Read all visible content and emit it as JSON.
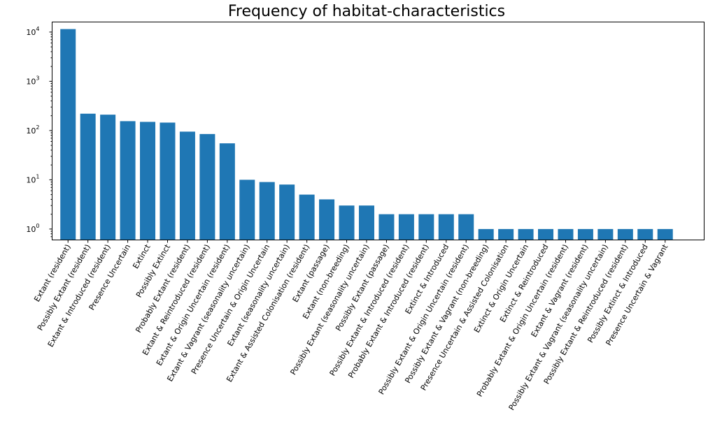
{
  "chart_data": {
    "type": "bar",
    "title": "Frequency of habitat-characteristics",
    "xlabel": "",
    "ylabel": "",
    "yscale": "log",
    "ylim": [
      0.6,
      16000
    ],
    "bar_color": "#1f77b4",
    "yticks": [
      {
        "value": 1,
        "base": "10",
        "exp": "0"
      },
      {
        "value": 10,
        "base": "10",
        "exp": "1"
      },
      {
        "value": 100,
        "base": "10",
        "exp": "2"
      },
      {
        "value": 1000,
        "base": "10",
        "exp": "3"
      },
      {
        "value": 10000,
        "base": "10",
        "exp": "4"
      }
    ],
    "categories": [
      "Extant (resident)",
      "Possibly Extant (resident)",
      "Extant & Introduced (resident)",
      "Presence Uncertain",
      "Extinct",
      "Possibly Extinct",
      "Probably Extant (resident)",
      "Extant & Reintroduced (resident)",
      "Extant & Origin Uncertain (resident)",
      "Extant & Vagrant (seasonality uncertain)",
      "Presence Uncertain & Origin Uncertain",
      "Extant (seasonality uncertain)",
      "Extant & Assisted Colonisation (resident)",
      "Extant (passage)",
      "Extant (non-breeding)",
      "Possibly Extant (seasonality uncertain)",
      "Possibly Extant (passage)",
      "Possibly Extant & Introduced (resident)",
      "Probably Extant & Introduced (resident)",
      "Extinct & Introduced",
      "Possibly Extant & Origin Uncertain (resident)",
      "Possibly Extant & Vagrant (non-breeding)",
      "Presence Uncertain & Assisted Colonisation",
      "Extinct & Origin Uncertain",
      "Extinct & Reintroduced",
      "Probably Extant & Origin Uncertain (resident)",
      "Extant & Vagrant (resident)",
      "Possibly Extant & Vagrant (seasonality uncertain)",
      "Possibly Extant & Reintroduced (resident)",
      "Possibly Extinct & Introduced",
      "Presence Uncertain & Vagrant"
    ],
    "values": [
      11500,
      220,
      210,
      155,
      150,
      145,
      95,
      85,
      55,
      10,
      9,
      8,
      5,
      4,
      3,
      3,
      2,
      2,
      2,
      2,
      2,
      1,
      1,
      1,
      1,
      1,
      1,
      1,
      1,
      1,
      1
    ]
  }
}
